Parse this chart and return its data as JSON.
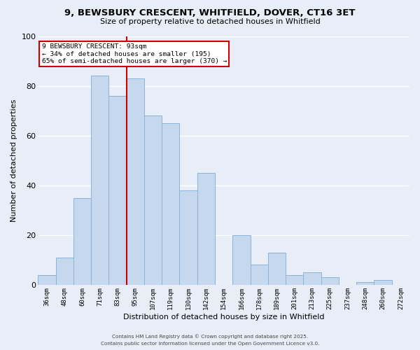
{
  "title": "9, BEWSBURY CRESCENT, WHITFIELD, DOVER, CT16 3ET",
  "subtitle": "Size of property relative to detached houses in Whitfield",
  "xlabel": "Distribution of detached houses by size in Whitfield",
  "ylabel": "Number of detached properties",
  "bar_labels": [
    "36sqm",
    "48sqm",
    "60sqm",
    "71sqm",
    "83sqm",
    "95sqm",
    "107sqm",
    "119sqm",
    "130sqm",
    "142sqm",
    "154sqm",
    "166sqm",
    "178sqm",
    "189sqm",
    "201sqm",
    "213sqm",
    "225sqm",
    "237sqm",
    "248sqm",
    "260sqm",
    "272sqm"
  ],
  "bar_values": [
    4,
    11,
    35,
    84,
    76,
    83,
    68,
    65,
    38,
    45,
    0,
    20,
    8,
    13,
    4,
    5,
    3,
    0,
    1,
    2,
    0
  ],
  "bar_color": "#c5d8ee",
  "bar_edge_color": "#8ab4d8",
  "ylim": [
    0,
    100
  ],
  "yticks": [
    0,
    20,
    40,
    60,
    80,
    100
  ],
  "vline_color": "#cc0000",
  "vline_x_index": 5,
  "annotation_line1": "9 BEWSBURY CRESCENT: 93sqm",
  "annotation_line2": "← 34% of detached houses are smaller (195)",
  "annotation_line3": "65% of semi-detached houses are larger (370) →",
  "annotation_box_facecolor": "#ffffff",
  "annotation_box_edgecolor": "#cc0000",
  "background_color": "#e8eef7",
  "grid_color": "#ffffff",
  "footer_line1": "Contains HM Land Registry data © Crown copyright and database right 2025.",
  "footer_line2": "Contains public sector information licensed under the Open Government Licence v3.0."
}
